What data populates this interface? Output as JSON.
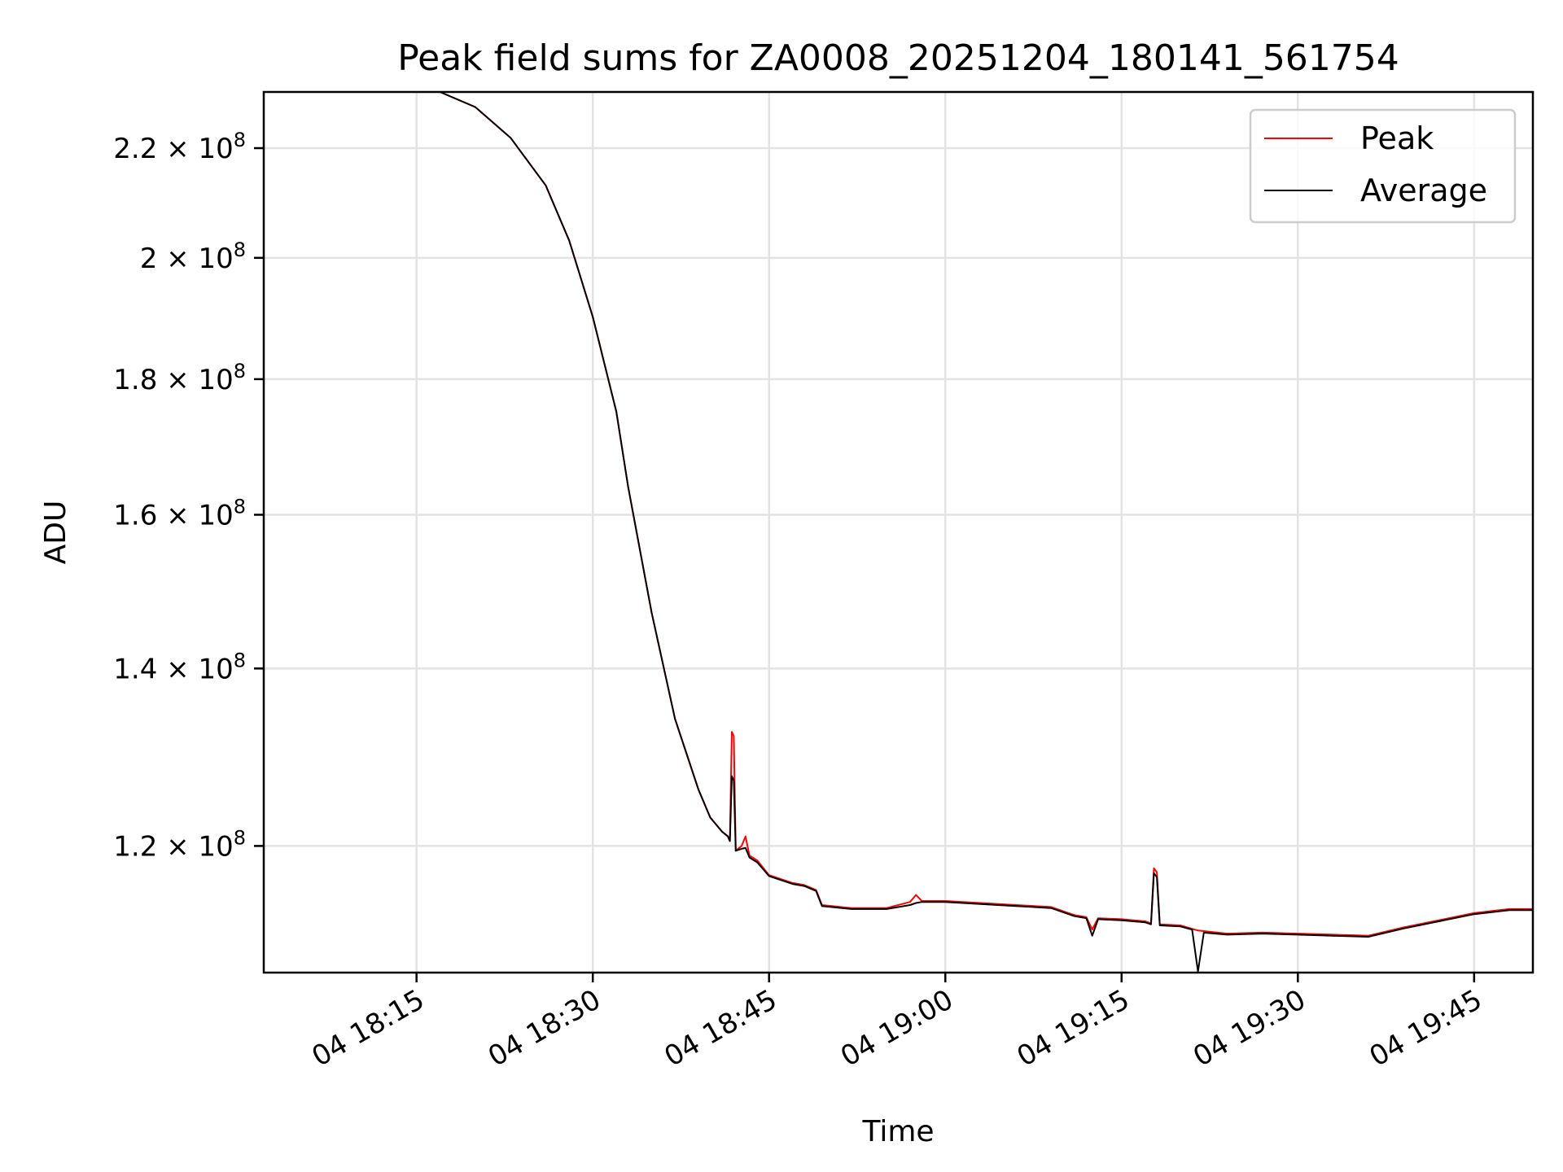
{
  "chart_data": {
    "type": "line",
    "title": "Peak field sums for ZA0008_20251204_180141_561754",
    "xlabel": "Time",
    "ylabel": "ADU",
    "y_scale": "log",
    "grid": true,
    "legend_position": "top-right",
    "xlim": [
      "2025-12-04 18:02",
      "2025-12-04 19:50"
    ],
    "ylim": [
      107500000,
      231000000
    ],
    "x_ticks": [
      {
        "value": "2025-12-04 18:15",
        "label": "04 18:15"
      },
      {
        "value": "2025-12-04 18:30",
        "label": "04 18:30"
      },
      {
        "value": "2025-12-04 18:45",
        "label": "04 18:45"
      },
      {
        "value": "2025-12-04 19:00",
        "label": "04 19:00"
      },
      {
        "value": "2025-12-04 19:15",
        "label": "04 19:15"
      },
      {
        "value": "2025-12-04 19:30",
        "label": "04 19:30"
      },
      {
        "value": "2025-12-04 19:45",
        "label": "04 19:45"
      }
    ],
    "y_ticks": [
      {
        "value": 120000000,
        "mantissa": "1.2",
        "exponent": "8"
      },
      {
        "value": 140000000,
        "mantissa": "1.4",
        "exponent": "8"
      },
      {
        "value": 160000000,
        "mantissa": "1.6",
        "exponent": "8"
      },
      {
        "value": 180000000,
        "mantissa": "1.8",
        "exponent": "8"
      },
      {
        "value": 200000000,
        "mantissa": "2",
        "exponent": "8"
      },
      {
        "value": 220000000,
        "mantissa": "2.2",
        "exponent": "8"
      }
    ],
    "series": [
      {
        "name": "Peak",
        "color": "#ff0000",
        "points": [
          [
            "2025-12-04 18:02",
            231000000
          ],
          [
            "2025-12-04 18:17",
            231000000
          ],
          [
            "2025-12-04 18:20",
            228000000
          ],
          [
            "2025-12-04 18:23",
            222000000
          ],
          [
            "2025-12-04 18:26",
            213000000
          ],
          [
            "2025-12-04 18:28",
            203000000
          ],
          [
            "2025-12-04 18:30",
            190000000
          ],
          [
            "2025-12-04 18:32",
            175000000
          ],
          [
            "2025-12-04 18:33",
            164000000
          ],
          [
            "2025-12-04 18:35",
            147000000
          ],
          [
            "2025-12-04 18:37",
            134000000
          ],
          [
            "2025-12-04 18:39",
            126000000
          ],
          [
            "2025-12-04 18:40",
            123000000
          ],
          [
            "2025-12-04 18:41",
            121500000
          ],
          [
            "2025-12-04 18:41:30",
            121000000
          ],
          [
            "2025-12-04 18:41:40",
            120500000
          ],
          [
            "2025-12-04 18:41:50",
            132500000
          ],
          [
            "2025-12-04 18:42",
            132000000
          ],
          [
            "2025-12-04 18:42:10",
            119500000
          ],
          [
            "2025-12-04 18:42:40",
            120000000
          ],
          [
            "2025-12-04 18:43",
            121000000
          ],
          [
            "2025-12-04 18:43:20",
            119000000
          ],
          [
            "2025-12-04 18:44",
            118500000
          ],
          [
            "2025-12-04 18:45",
            117000000
          ],
          [
            "2025-12-04 18:47",
            116200000
          ],
          [
            "2025-12-04 18:48",
            116000000
          ],
          [
            "2025-12-04 18:49",
            115500000
          ],
          [
            "2025-12-04 18:49:30",
            114000000
          ],
          [
            "2025-12-04 18:52",
            113700000
          ],
          [
            "2025-12-04 18:55",
            113700000
          ],
          [
            "2025-12-04 18:57",
            114300000
          ],
          [
            "2025-12-04 18:57:30",
            115000000
          ],
          [
            "2025-12-04 18:58",
            114400000
          ],
          [
            "2025-12-04 19:00",
            114400000
          ],
          [
            "2025-12-04 19:03",
            114200000
          ],
          [
            "2025-12-04 19:06",
            114000000
          ],
          [
            "2025-12-04 19:09",
            113800000
          ],
          [
            "2025-12-04 19:11",
            113000000
          ],
          [
            "2025-12-04 19:12",
            112800000
          ],
          [
            "2025-12-04 19:12:30",
            111600000
          ],
          [
            "2025-12-04 19:13",
            112700000
          ],
          [
            "2025-12-04 19:15",
            112600000
          ],
          [
            "2025-12-04 19:17",
            112400000
          ],
          [
            "2025-12-04 19:17:30",
            112200000
          ],
          [
            "2025-12-04 19:17:45",
            117700000
          ],
          [
            "2025-12-04 19:18",
            117300000
          ],
          [
            "2025-12-04 19:18:15",
            112100000
          ],
          [
            "2025-12-04 19:20",
            112000000
          ],
          [
            "2025-12-04 19:21:30",
            111500000
          ],
          [
            "2025-12-04 19:24",
            111200000
          ],
          [
            "2025-12-04 19:27",
            111300000
          ],
          [
            "2025-12-04 19:30",
            111200000
          ],
          [
            "2025-12-04 19:33",
            111100000
          ],
          [
            "2025-12-04 19:36",
            111000000
          ],
          [
            "2025-12-04 19:39",
            111800000
          ],
          [
            "2025-12-04 19:42",
            112500000
          ],
          [
            "2025-12-04 19:45",
            113200000
          ],
          [
            "2025-12-04 19:48",
            113600000
          ],
          [
            "2025-12-04 19:50",
            113600000
          ]
        ]
      },
      {
        "name": "Average",
        "color": "#000000",
        "points": [
          [
            "2025-12-04 18:02",
            231000000
          ],
          [
            "2025-12-04 18:17",
            231000000
          ],
          [
            "2025-12-04 18:20",
            228000000
          ],
          [
            "2025-12-04 18:23",
            222000000
          ],
          [
            "2025-12-04 18:26",
            213000000
          ],
          [
            "2025-12-04 18:28",
            203000000
          ],
          [
            "2025-12-04 18:30",
            190000000
          ],
          [
            "2025-12-04 18:32",
            175000000
          ],
          [
            "2025-12-04 18:33",
            164000000
          ],
          [
            "2025-12-04 18:35",
            147000000
          ],
          [
            "2025-12-04 18:37",
            134000000
          ],
          [
            "2025-12-04 18:39",
            126000000
          ],
          [
            "2025-12-04 18:40",
            123000000
          ],
          [
            "2025-12-04 18:41",
            121500000
          ],
          [
            "2025-12-04 18:41:30",
            121000000
          ],
          [
            "2025-12-04 18:41:40",
            120500000
          ],
          [
            "2025-12-04 18:41:50",
            127500000
          ],
          [
            "2025-12-04 18:42",
            127000000
          ],
          [
            "2025-12-04 18:42:10",
            119500000
          ],
          [
            "2025-12-04 18:42:40",
            119700000
          ],
          [
            "2025-12-04 18:43",
            119800000
          ],
          [
            "2025-12-04 18:43:20",
            118800000
          ],
          [
            "2025-12-04 18:44",
            118300000
          ],
          [
            "2025-12-04 18:45",
            116900000
          ],
          [
            "2025-12-04 18:47",
            116100000
          ],
          [
            "2025-12-04 18:48",
            115900000
          ],
          [
            "2025-12-04 18:49",
            115400000
          ],
          [
            "2025-12-04 18:49:30",
            113900000
          ],
          [
            "2025-12-04 18:52",
            113600000
          ],
          [
            "2025-12-04 18:55",
            113600000
          ],
          [
            "2025-12-04 18:57",
            114000000
          ],
          [
            "2025-12-04 18:57:30",
            114200000
          ],
          [
            "2025-12-04 18:58",
            114300000
          ],
          [
            "2025-12-04 19:00",
            114300000
          ],
          [
            "2025-12-04 19:03",
            114100000
          ],
          [
            "2025-12-04 19:06",
            113900000
          ],
          [
            "2025-12-04 19:09",
            113700000
          ],
          [
            "2025-12-04 19:11",
            112900000
          ],
          [
            "2025-12-04 19:12",
            112700000
          ],
          [
            "2025-12-04 19:12:30",
            111000000
          ],
          [
            "2025-12-04 19:13",
            112600000
          ],
          [
            "2025-12-04 19:15",
            112500000
          ],
          [
            "2025-12-04 19:17",
            112300000
          ],
          [
            "2025-12-04 19:17:30",
            112100000
          ],
          [
            "2025-12-04 19:17:45",
            117200000
          ],
          [
            "2025-12-04 19:18",
            116800000
          ],
          [
            "2025-12-04 19:18:15",
            112000000
          ],
          [
            "2025-12-04 19:20",
            111900000
          ],
          [
            "2025-12-04 19:21",
            111600000
          ],
          [
            "2025-12-04 19:21:30",
            107600000
          ],
          [
            "2025-12-04 19:22",
            111300000
          ],
          [
            "2025-12-04 19:24",
            111100000
          ],
          [
            "2025-12-04 19:27",
            111200000
          ],
          [
            "2025-12-04 19:30",
            111100000
          ],
          [
            "2025-12-04 19:33",
            111000000
          ],
          [
            "2025-12-04 19:36",
            110900000
          ],
          [
            "2025-12-04 19:39",
            111700000
          ],
          [
            "2025-12-04 19:42",
            112400000
          ],
          [
            "2025-12-04 19:45",
            113100000
          ],
          [
            "2025-12-04 19:48",
            113500000
          ],
          [
            "2025-12-04 19:50",
            113500000
          ]
        ]
      }
    ]
  }
}
